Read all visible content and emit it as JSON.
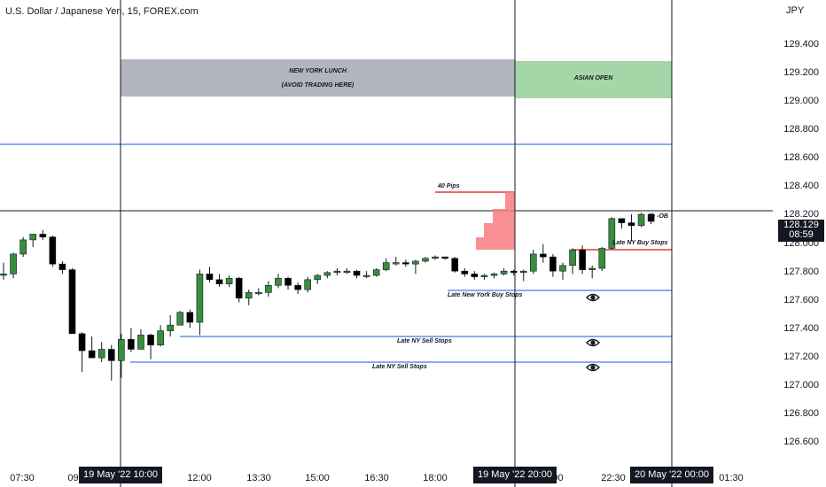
{
  "title": "U.S. Dollar / Japanese Yen, 15, FOREX.com",
  "currency": "JPY",
  "price_axis": [
    "129.400",
    "129.200",
    "129.000",
    "128.800",
    "128.600",
    "128.400",
    "128.200",
    "128.000",
    "127.800",
    "127.600",
    "127.400",
    "127.200",
    "127.000",
    "126.800",
    "126.600"
  ],
  "time_axis": [
    "07:30",
    "09:",
    "12:00",
    "13:30",
    "15:00",
    "16:30",
    "18:00",
    ":00",
    "22:30",
    "01:30"
  ],
  "time_highlights": [
    "19 May '22   10:00",
    "19 May '22   20:00",
    "20 May '22   00:00"
  ],
  "current_price": {
    "value": "128.129",
    "countdown": "08:59"
  },
  "zones": {
    "ny_lunch": {
      "line1": "NEW YORK LUNCH",
      "line2": "(AVOID TRADING HERE)",
      "color": "#b2b5be"
    },
    "asian_open": {
      "label": "ASIAN OPEN",
      "color": "#a5d6a7"
    }
  },
  "annotations": {
    "pips": "40 Pips",
    "ob": "4h -OB",
    "late_ny_buy_stops": "Late NY Buy Stops",
    "late_new_york_buy_stops": "Late New York Buy Stops",
    "late_ny_sell_stops_1": "Late NY Sell Stops",
    "late_ny_sell_stops_2": "Late NY Sell Stops"
  },
  "colors": {
    "bull": "#388e3c",
    "bear": "#000000",
    "level": "#1e53e5",
    "red": "#e53935",
    "pips_fill": "#f77c80"
  },
  "chart_data": {
    "type": "candlestick",
    "symbol": "USDJPY",
    "interval": "15",
    "ylim": [
      126.5,
      129.6
    ],
    "candles": [
      {
        "o": 127.78,
        "h": 127.86,
        "l": 127.74,
        "c": 127.78
      },
      {
        "o": 127.78,
        "h": 127.93,
        "l": 127.75,
        "c": 127.92
      },
      {
        "o": 127.92,
        "h": 128.04,
        "l": 127.9,
        "c": 128.02
      },
      {
        "o": 128.02,
        "h": 128.06,
        "l": 127.97,
        "c": 128.06
      },
      {
        "o": 128.06,
        "h": 128.09,
        "l": 128.02,
        "c": 128.04
      },
      {
        "o": 128.04,
        "h": 128.05,
        "l": 127.83,
        "c": 127.85
      },
      {
        "o": 127.85,
        "h": 127.87,
        "l": 127.78,
        "c": 127.81
      },
      {
        "o": 127.81,
        "h": 127.82,
        "l": 127.36,
        "c": 127.36
      },
      {
        "o": 127.36,
        "h": 127.37,
        "l": 127.09,
        "c": 127.24
      },
      {
        "o": 127.24,
        "h": 127.34,
        "l": 127.19,
        "c": 127.19
      },
      {
        "o": 127.19,
        "h": 127.3,
        "l": 127.16,
        "c": 127.25
      },
      {
        "o": 127.25,
        "h": 127.28,
        "l": 127.03,
        "c": 127.17
      },
      {
        "o": 127.17,
        "h": 127.36,
        "l": 127.05,
        "c": 127.32
      },
      {
        "o": 127.32,
        "h": 127.4,
        "l": 127.23,
        "c": 127.25
      },
      {
        "o": 127.25,
        "h": 127.39,
        "l": 127.25,
        "c": 127.35
      },
      {
        "o": 127.35,
        "h": 127.36,
        "l": 127.18,
        "c": 127.28
      },
      {
        "o": 127.28,
        "h": 127.42,
        "l": 127.27,
        "c": 127.38
      },
      {
        "o": 127.38,
        "h": 127.49,
        "l": 127.34,
        "c": 127.42
      },
      {
        "o": 127.42,
        "h": 127.52,
        "l": 127.42,
        "c": 127.51
      },
      {
        "o": 127.51,
        "h": 127.53,
        "l": 127.4,
        "c": 127.44
      },
      {
        "o": 127.44,
        "h": 127.81,
        "l": 127.35,
        "c": 127.78
      },
      {
        "o": 127.78,
        "h": 127.83,
        "l": 127.72,
        "c": 127.74
      },
      {
        "o": 127.74,
        "h": 127.78,
        "l": 127.69,
        "c": 127.71
      },
      {
        "o": 127.71,
        "h": 127.77,
        "l": 127.69,
        "c": 127.75
      },
      {
        "o": 127.75,
        "h": 127.76,
        "l": 127.58,
        "c": 127.61
      },
      {
        "o": 127.61,
        "h": 127.67,
        "l": 127.56,
        "c": 127.65
      },
      {
        "o": 127.65,
        "h": 127.68,
        "l": 127.63,
        "c": 127.65
      },
      {
        "o": 127.65,
        "h": 127.73,
        "l": 127.62,
        "c": 127.7
      },
      {
        "o": 127.7,
        "h": 127.78,
        "l": 127.68,
        "c": 127.75
      },
      {
        "o": 127.75,
        "h": 127.76,
        "l": 127.67,
        "c": 127.7
      },
      {
        "o": 127.7,
        "h": 127.72,
        "l": 127.64,
        "c": 127.67
      },
      {
        "o": 127.67,
        "h": 127.76,
        "l": 127.65,
        "c": 127.74
      },
      {
        "o": 127.74,
        "h": 127.78,
        "l": 127.71,
        "c": 127.77
      },
      {
        "o": 127.77,
        "h": 127.8,
        "l": 127.75,
        "c": 127.79
      },
      {
        "o": 127.79,
        "h": 127.82,
        "l": 127.77,
        "c": 127.8
      },
      {
        "o": 127.8,
        "h": 127.82,
        "l": 127.78,
        "c": 127.8
      },
      {
        "o": 127.8,
        "h": 127.81,
        "l": 127.75,
        "c": 127.77
      },
      {
        "o": 127.77,
        "h": 127.8,
        "l": 127.75,
        "c": 127.77
      },
      {
        "o": 127.77,
        "h": 127.82,
        "l": 127.76,
        "c": 127.81
      },
      {
        "o": 127.81,
        "h": 127.89,
        "l": 127.8,
        "c": 127.86
      },
      {
        "o": 127.86,
        "h": 127.9,
        "l": 127.84,
        "c": 127.86
      },
      {
        "o": 127.86,
        "h": 127.88,
        "l": 127.83,
        "c": 127.85
      },
      {
        "o": 127.85,
        "h": 127.88,
        "l": 127.78,
        "c": 127.87
      },
      {
        "o": 127.87,
        "h": 127.9,
        "l": 127.86,
        "c": 127.89
      },
      {
        "o": 127.89,
        "h": 127.91,
        "l": 127.88,
        "c": 127.9
      },
      {
        "o": 127.9,
        "h": 127.9,
        "l": 127.88,
        "c": 127.89
      },
      {
        "o": 127.89,
        "h": 127.9,
        "l": 127.79,
        "c": 127.8
      },
      {
        "o": 127.8,
        "h": 127.82,
        "l": 127.76,
        "c": 127.78
      },
      {
        "o": 127.78,
        "h": 127.8,
        "l": 127.74,
        "c": 127.76
      },
      {
        "o": 127.76,
        "h": 127.78,
        "l": 127.74,
        "c": 127.77
      },
      {
        "o": 127.77,
        "h": 127.79,
        "l": 127.75,
        "c": 127.78
      },
      {
        "o": 127.78,
        "h": 127.82,
        "l": 127.77,
        "c": 127.8
      },
      {
        "o": 127.8,
        "h": 127.81,
        "l": 127.77,
        "c": 127.79
      },
      {
        "o": 127.79,
        "h": 127.81,
        "l": 127.73,
        "c": 127.8
      },
      {
        "o": 127.8,
        "h": 127.95,
        "l": 127.78,
        "c": 127.92
      },
      {
        "o": 127.92,
        "h": 127.99,
        "l": 127.86,
        "c": 127.9
      },
      {
        "o": 127.9,
        "h": 127.92,
        "l": 127.76,
        "c": 127.8
      },
      {
        "o": 127.8,
        "h": 127.86,
        "l": 127.74,
        "c": 127.84
      },
      {
        "o": 127.84,
        "h": 127.96,
        "l": 127.78,
        "c": 127.95
      },
      {
        "o": 127.95,
        "h": 127.98,
        "l": 127.78,
        "c": 127.81
      },
      {
        "o": 127.81,
        "h": 127.84,
        "l": 127.75,
        "c": 127.82
      },
      {
        "o": 127.82,
        "h": 127.97,
        "l": 127.8,
        "c": 127.96
      },
      {
        "o": 127.96,
        "h": 128.18,
        "l": 127.95,
        "c": 128.17
      },
      {
        "o": 128.17,
        "h": 128.17,
        "l": 128.1,
        "c": 128.14
      },
      {
        "o": 128.14,
        "h": 128.2,
        "l": 128.01,
        "c": 128.12
      },
      {
        "o": 128.12,
        "h": 128.21,
        "l": 128.11,
        "c": 128.2
      },
      {
        "o": 128.2,
        "h": 128.2,
        "l": 128.13,
        "c": 128.15
      }
    ]
  }
}
